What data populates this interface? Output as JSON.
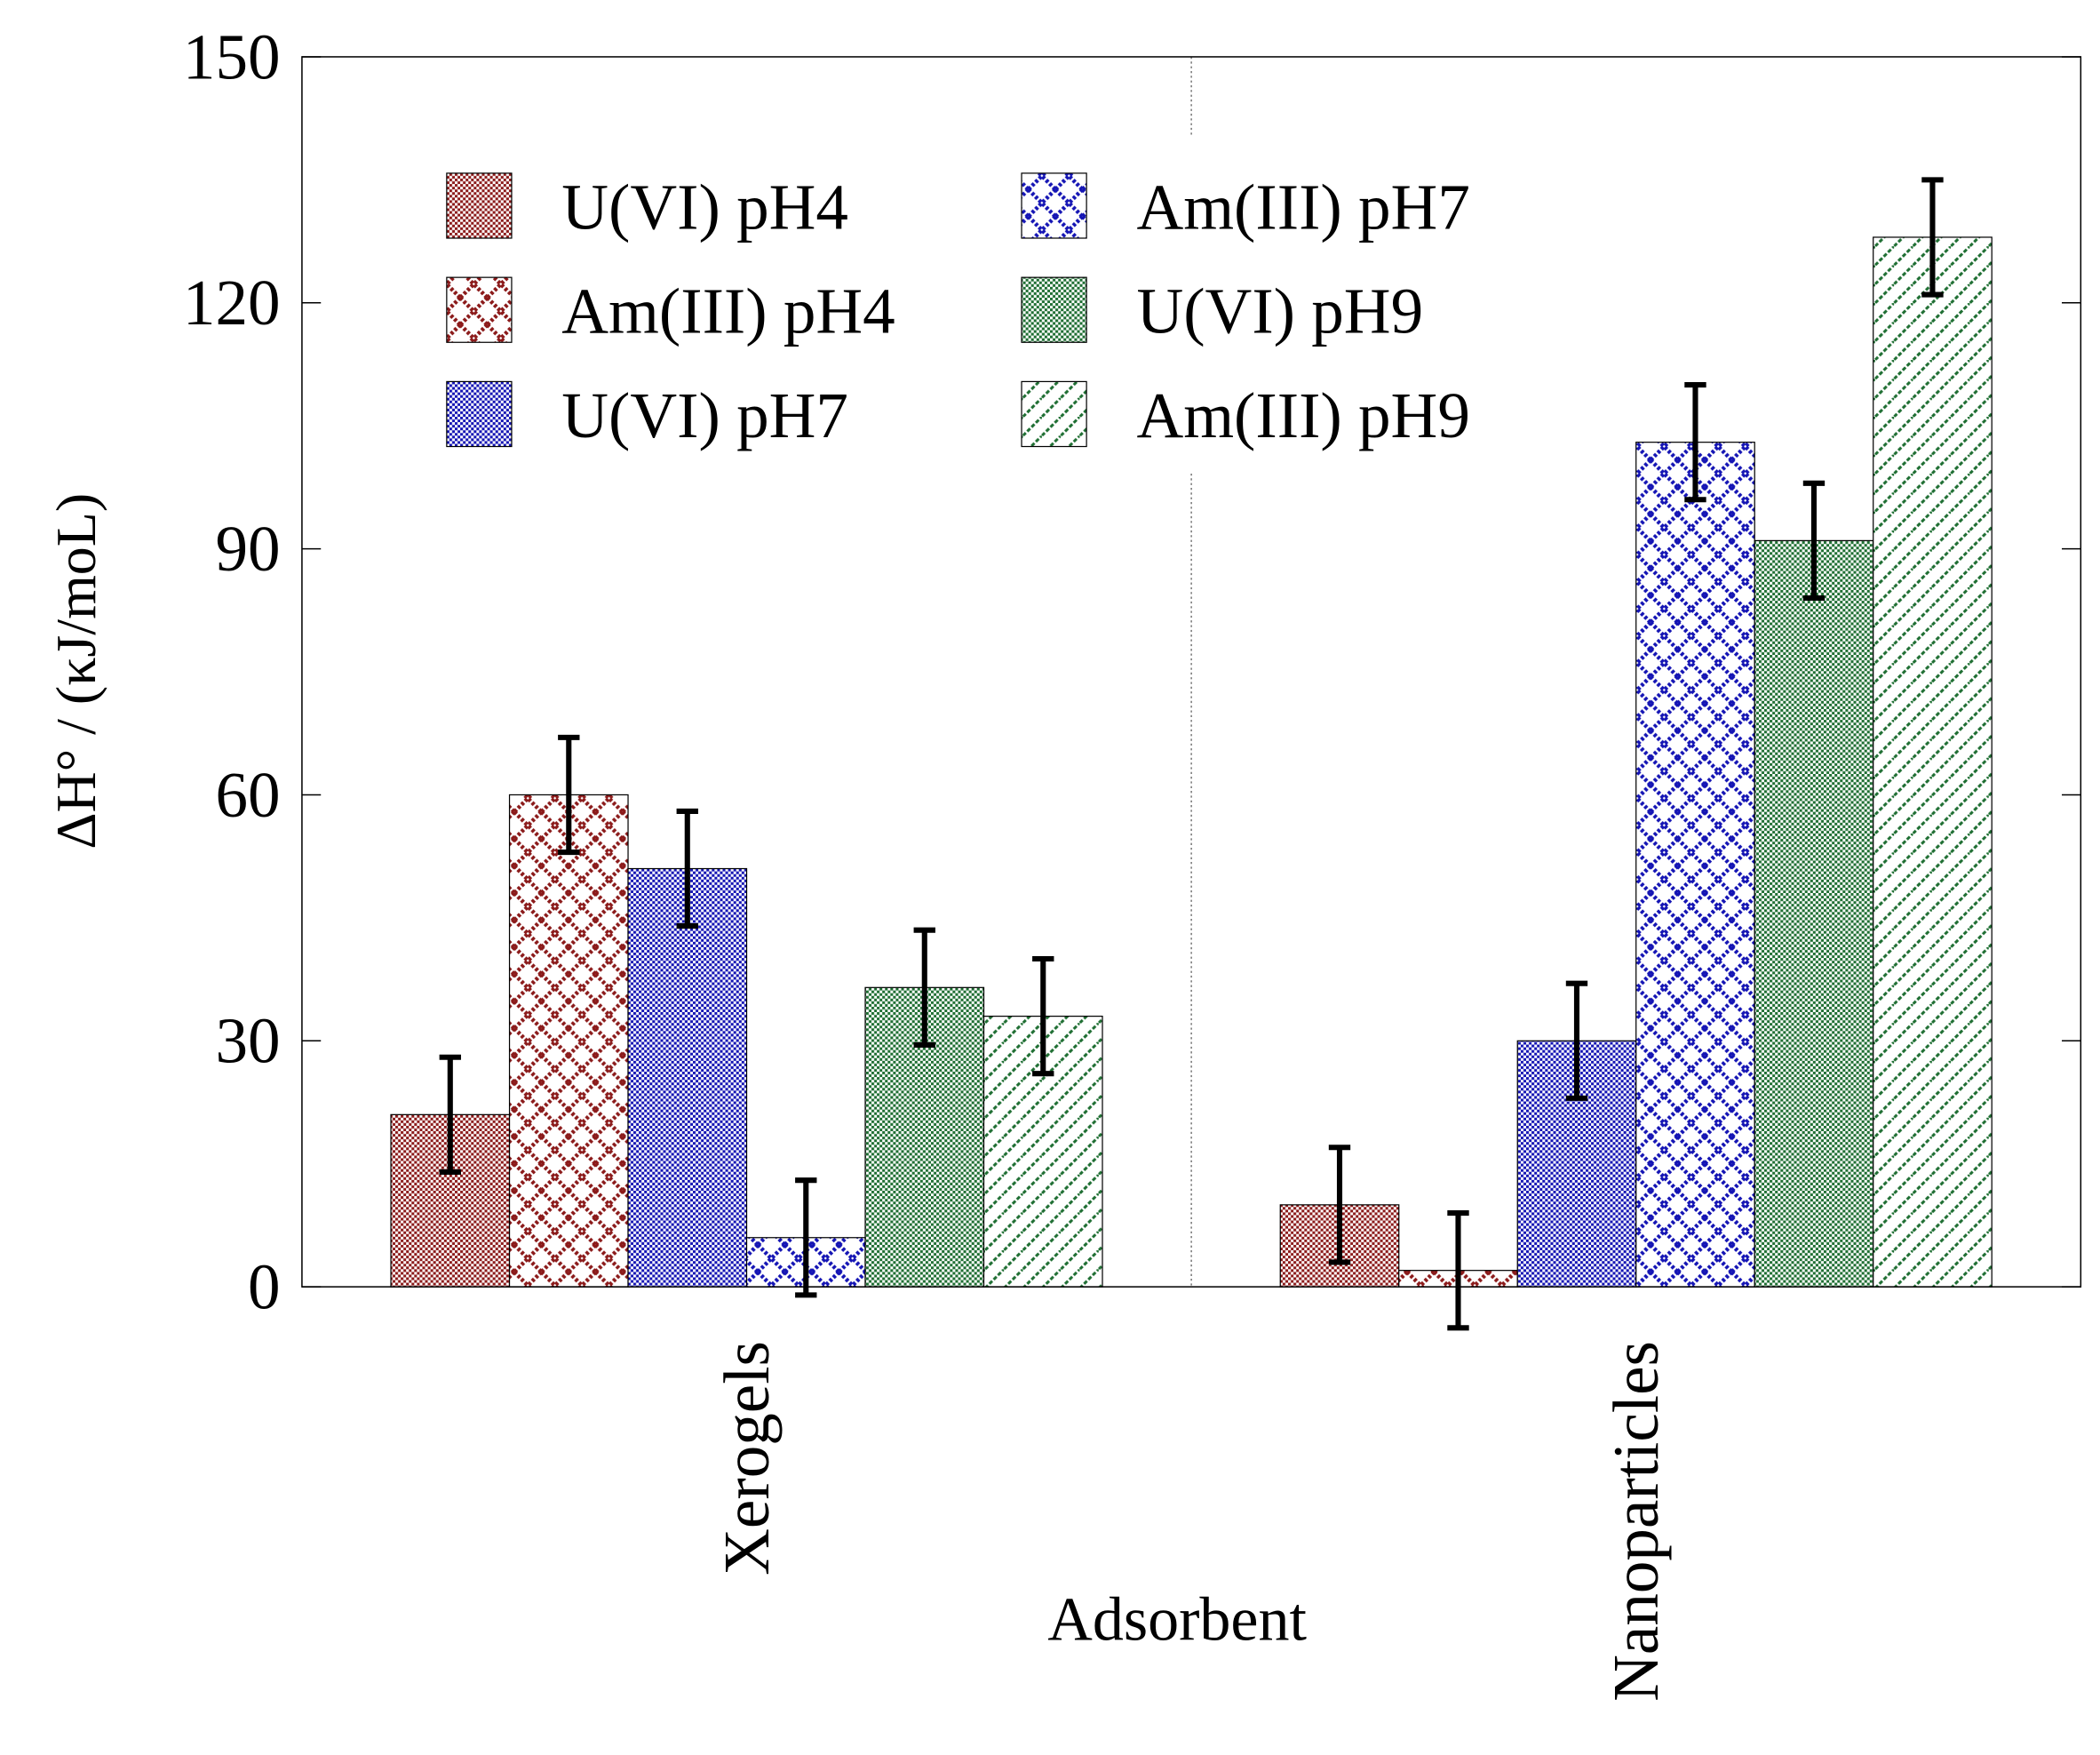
{
  "chart_data": {
    "type": "bar",
    "xlabel": "Adsorbent",
    "ylabel": "ΔH° / (κJ/moL)",
    "categories": [
      "Xerogels",
      "Nanoparticles"
    ],
    "series": [
      {
        "name": "U(VI) pH4",
        "color": "#8b1a1a",
        "pattern": "checker",
        "values": [
          21,
          10
        ],
        "errors": [
          7,
          7
        ]
      },
      {
        "name": "Am(III) pH4",
        "color": "#8b1a1a",
        "pattern": "diamond",
        "values": [
          60,
          2
        ],
        "errors": [
          7,
          7
        ]
      },
      {
        "name": "U(VI) pH7",
        "color": "#1414b4",
        "pattern": "checker",
        "values": [
          51,
          30
        ],
        "errors": [
          7,
          7
        ]
      },
      {
        "name": "Am(III) pH7",
        "color": "#1414b4",
        "pattern": "diamond",
        "values": [
          6,
          103
        ],
        "errors": [
          7,
          7
        ]
      },
      {
        "name": "U(VI) pH9",
        "color": "#1e6e32",
        "pattern": "checker",
        "values": [
          36.5,
          91
        ],
        "errors": [
          7,
          7
        ]
      },
      {
        "name": "Am(III) pH9",
        "color": "#1e6e32",
        "pattern": "hatch",
        "values": [
          33,
          128
        ],
        "errors": [
          7,
          7
        ]
      }
    ],
    "ylim": [
      0,
      150
    ],
    "yticks": [
      0,
      30,
      60,
      90,
      120,
      150
    ],
    "legend": "upper left"
  }
}
